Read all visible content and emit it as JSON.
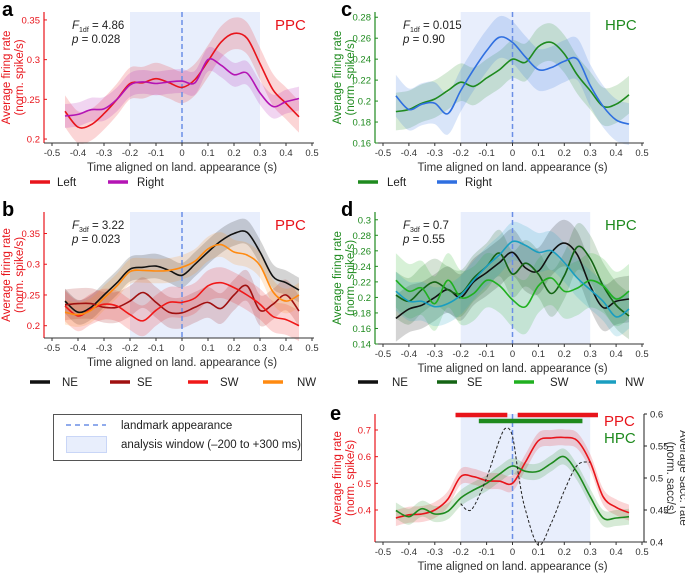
{
  "colors": {
    "window": "#e8eefc",
    "window_edge": "#c9d6f7",
    "landmark": "#6b8fe6",
    "ppc": "#e8141b",
    "hpc": "#1e8a1e"
  },
  "legend_box": {
    "landmark_label": "landmark appearance",
    "window_label": "analysis window (–200 to +300 ms)"
  },
  "chart_data": [
    {
      "panel": "a",
      "type": "line",
      "region": "PPC",
      "region_color": "#e8141b",
      "stat": {
        "f_sub": "1df",
        "f_text": " = 4.86",
        "p_text": " = 0.028"
      },
      "xlabel": "Time aligned on land. appearance (s)",
      "ylabel": [
        "Average firing rate",
        "(norm. spike/s)"
      ],
      "xlim": [
        -0.5,
        0.5
      ],
      "ylim": [
        0.195,
        0.36
      ],
      "xticks": [
        "-0.5",
        "-0.4",
        "-0.3",
        "-0.2",
        "-0.1",
        "0",
        "0.1",
        "0.2",
        "0.3",
        "0.4",
        "0.5"
      ],
      "yticks": [
        "0.2",
        "0.25",
        "0.3",
        "0.35"
      ],
      "window": [
        -0.2,
        0.3
      ],
      "landmark": 0,
      "x": [
        -0.45,
        -0.4,
        -0.35,
        -0.3,
        -0.25,
        -0.2,
        -0.15,
        -0.1,
        -0.05,
        0,
        0.05,
        0.1,
        0.15,
        0.2,
        0.25,
        0.3,
        0.35,
        0.4,
        0.45
      ],
      "series": [
        {
          "name": "Left",
          "color": "#e8141b",
          "band": 0.02,
          "values": [
            0.235,
            0.215,
            0.218,
            0.232,
            0.25,
            0.27,
            0.271,
            0.276,
            0.271,
            0.265,
            0.275,
            0.298,
            0.322,
            0.333,
            0.327,
            0.295,
            0.262,
            0.245,
            0.228
          ]
        },
        {
          "name": "Right",
          "color": "#b414b4",
          "band": 0.015,
          "values": [
            0.229,
            0.231,
            0.237,
            0.238,
            0.25,
            0.268,
            0.272,
            0.27,
            0.272,
            0.273,
            0.271,
            0.3,
            0.293,
            0.281,
            0.283,
            0.258,
            0.241,
            0.247,
            0.251
          ]
        }
      ]
    },
    {
      "panel": "c",
      "type": "line",
      "region": "HPC",
      "region_color": "#1e8a1e",
      "stat": {
        "f_sub": "1df",
        "f_text": " = 0.015",
        "p_text": " = 0.90"
      },
      "xlabel": "Time aligned on land. appearance (s)",
      "ylabel": [
        "Average firing rate",
        "(norm. spike/s)"
      ],
      "xlim": [
        -0.5,
        0.5
      ],
      "ylim": [
        0.16,
        0.285
      ],
      "xticks": [
        "-0.5",
        "-0.4",
        "-0.3",
        "-0.2",
        "-0.1",
        "0",
        "0.1",
        "0.2",
        "0.3",
        "0.4",
        "0.5"
      ],
      "yticks": [
        "0.16",
        "0.18",
        "0.2",
        "0.22",
        "0.24",
        "0.26",
        "0.28"
      ],
      "window": [
        -0.2,
        0.3
      ],
      "landmark": 0,
      "x": [
        -0.45,
        -0.4,
        -0.35,
        -0.3,
        -0.25,
        -0.2,
        -0.15,
        -0.1,
        -0.05,
        0,
        0.05,
        0.1,
        0.15,
        0.2,
        0.25,
        0.3,
        0.35,
        0.4,
        0.45
      ],
      "series": [
        {
          "name": "Left",
          "color": "#1e8a1e",
          "band": 0.018,
          "values": [
            0.19,
            0.192,
            0.198,
            0.202,
            0.21,
            0.218,
            0.214,
            0.222,
            0.23,
            0.24,
            0.237,
            0.252,
            0.256,
            0.245,
            0.225,
            0.21,
            0.195,
            0.197,
            0.206
          ]
        },
        {
          "name": "Right",
          "color": "#2f6fe0",
          "band": 0.02,
          "values": [
            0.205,
            0.192,
            0.197,
            0.198,
            0.188,
            0.21,
            0.23,
            0.248,
            0.261,
            0.256,
            0.242,
            0.23,
            0.232,
            0.238,
            0.24,
            0.215,
            0.195,
            0.182,
            0.178
          ]
        }
      ]
    },
    {
      "panel": "b",
      "type": "line",
      "region": "PPC",
      "region_color": "#e8141b",
      "stat": {
        "f_sub": "3df",
        "f_text": " = 3.22",
        "p_text": " = 0.023"
      },
      "xlabel": "Time aligned on land. appearance (s)",
      "ylabel": [
        "Average firing rate",
        "(norm. spike/s)"
      ],
      "xlim": [
        -0.5,
        0.5
      ],
      "ylim": [
        0.18,
        0.385
      ],
      "xticks": [
        "-0.5",
        "-0.4",
        "-0.3",
        "-0.2",
        "-0.1",
        "0",
        "0.1",
        "0.2",
        "0.3",
        "0.4",
        "0.5"
      ],
      "yticks": [
        "0.2",
        "0.25",
        "0.3",
        "0.35"
      ],
      "window": [
        -0.2,
        0.3
      ],
      "landmark": 0,
      "x": [
        -0.45,
        -0.4,
        -0.35,
        -0.3,
        -0.25,
        -0.2,
        -0.15,
        -0.1,
        -0.05,
        0,
        0.05,
        0.1,
        0.15,
        0.2,
        0.25,
        0.3,
        0.35,
        0.4,
        0.45
      ],
      "series": [
        {
          "name": "NE",
          "color": "#111111",
          "band": 0.02,
          "values": [
            0.24,
            0.222,
            0.23,
            0.25,
            0.27,
            0.292,
            0.295,
            0.297,
            0.29,
            0.282,
            0.3,
            0.32,
            0.338,
            0.35,
            0.352,
            0.32,
            0.28,
            0.27,
            0.258
          ]
        },
        {
          "name": "SE",
          "color": "#a01010",
          "band": 0.025,
          "values": [
            0.234,
            0.236,
            0.236,
            0.23,
            0.23,
            0.24,
            0.254,
            0.238,
            0.222,
            0.221,
            0.23,
            0.238,
            0.228,
            0.25,
            0.265,
            0.225,
            0.235,
            0.25,
            0.224
          ]
        },
        {
          "name": "SW",
          "color": "#f01818",
          "band": 0.025,
          "values": [
            0.232,
            0.216,
            0.227,
            0.235,
            0.232,
            0.218,
            0.208,
            0.225,
            0.238,
            0.238,
            0.245,
            0.265,
            0.27,
            0.262,
            0.25,
            0.235,
            0.215,
            0.21,
            0.2
          ]
        },
        {
          "name": "NW",
          "color": "#ff8a10",
          "band": 0.02,
          "values": [
            0.222,
            0.218,
            0.225,
            0.245,
            0.265,
            0.288,
            0.29,
            0.289,
            0.29,
            0.295,
            0.305,
            0.325,
            0.332,
            0.32,
            0.315,
            0.298,
            0.255,
            0.24,
            0.25
          ]
        }
      ]
    },
    {
      "panel": "d",
      "type": "line",
      "region": "HPC",
      "region_color": "#1e8a1e",
      "stat": {
        "f_sub": "3df",
        "f_text": " = 0.7",
        "p_text": " = 0.55"
      },
      "xlabel": "Time aligned on land. appearance (s)",
      "ylabel": [
        "Average firing rate",
        "(norm. spike/s)"
      ],
      "xlim": [
        -0.5,
        0.5
      ],
      "ylim": [
        0.14,
        0.31
      ],
      "xticks": [
        "-0.5",
        "-0.4",
        "-0.3",
        "-0.2",
        "-0.1",
        "0",
        "0.1",
        "0.2",
        "0.3",
        "0.4",
        "0.5"
      ],
      "yticks": [
        "0.14",
        "0.16",
        "0.18",
        "0.2",
        "0.22",
        "0.24",
        "0.26",
        "0.28",
        "0.3"
      ],
      "window": [
        -0.2,
        0.3
      ],
      "landmark": 0,
      "x": [
        -0.45,
        -0.4,
        -0.35,
        -0.3,
        -0.25,
        -0.2,
        -0.15,
        -0.1,
        -0.05,
        0,
        0.05,
        0.1,
        0.15,
        0.2,
        0.25,
        0.3,
        0.35,
        0.4,
        0.45
      ],
      "series": [
        {
          "name": "NE",
          "color": "#111111",
          "band": 0.03,
          "values": [
            0.173,
            0.185,
            0.19,
            0.2,
            0.21,
            0.2,
            0.22,
            0.232,
            0.245,
            0.258,
            0.238,
            0.234,
            0.258,
            0.27,
            0.255,
            0.215,
            0.187,
            0.195,
            0.198
          ]
        },
        {
          "name": "SE",
          "color": "#146414",
          "band": 0.03,
          "values": [
            0.203,
            0.195,
            0.21,
            0.22,
            0.21,
            0.205,
            0.225,
            0.24,
            0.257,
            0.23,
            0.244,
            0.23,
            0.205,
            0.228,
            0.265,
            0.25,
            0.215,
            0.19,
            0.176
          ]
        },
        {
          "name": "SW",
          "color": "#20b020",
          "band": 0.035,
          "values": [
            0.222,
            0.208,
            0.212,
            0.192,
            0.222,
            0.2,
            0.205,
            0.222,
            0.215,
            0.197,
            0.188,
            0.215,
            0.225,
            0.208,
            0.212,
            0.222,
            0.215,
            0.198,
            0.208
          ]
        },
        {
          "name": "NW",
          "color": "#1a9ec0",
          "band": 0.025,
          "values": [
            0.208,
            0.195,
            0.195,
            0.188,
            0.192,
            0.203,
            0.222,
            0.24,
            0.255,
            0.272,
            0.267,
            0.258,
            0.26,
            0.245,
            0.225,
            0.21,
            0.195,
            0.175,
            0.185
          ]
        }
      ]
    },
    {
      "panel": "e",
      "type": "line",
      "regions": [
        {
          "label": "PPC",
          "color": "#e8141b"
        },
        {
          "label": "HPC",
          "color": "#1e8a1e"
        }
      ],
      "xlabel": "Time aligned on land. appearance (s)",
      "ylabel": [
        "Average firing rate",
        "(norm. spike/s)"
      ],
      "y2label": [
        "Average sacc. rate",
        "(norm. sacc/s)"
      ],
      "xlim": [
        -0.5,
        0.5
      ],
      "ylim": [
        0.28,
        0.76
      ],
      "y2lim": [
        0.4,
        0.6
      ],
      "xticks": [
        "-0.5",
        "-0.4",
        "-0.3",
        "-0.2",
        "-0.1",
        "0",
        "0.1",
        "0.2",
        "0.3",
        "0.4",
        "0.5"
      ],
      "yticks": [
        "0.4",
        "0.5",
        "0.6",
        "0.7"
      ],
      "y2ticks": [
        "0.4",
        "0.45",
        "0.5",
        "0.55",
        "0.6"
      ],
      "window": [
        -0.2,
        0.3
      ],
      "landmark": 0,
      "x": [
        -0.45,
        -0.4,
        -0.35,
        -0.3,
        -0.25,
        -0.2,
        -0.15,
        -0.1,
        -0.05,
        0,
        0.05,
        0.1,
        0.15,
        0.2,
        0.25,
        0.3,
        0.35,
        0.4,
        0.45
      ],
      "series": [
        {
          "name": "PPC",
          "color": "#e8141b",
          "band": 0.03,
          "values": [
            0.37,
            0.382,
            0.385,
            0.4,
            0.44,
            0.525,
            0.525,
            0.51,
            0.508,
            0.5,
            0.58,
            0.66,
            0.67,
            0.672,
            0.66,
            0.58,
            0.45,
            0.41,
            0.39
          ]
        },
        {
          "name": "HPC",
          "color": "#1e8a1e",
          "band": 0.03,
          "values": [
            0.398,
            0.375,
            0.405,
            0.385,
            0.395,
            0.445,
            0.475,
            0.5,
            0.535,
            0.565,
            0.545,
            0.545,
            0.575,
            0.6,
            0.54,
            0.45,
            0.37,
            0.37,
            0.375
          ]
        }
      ],
      "saccade": {
        "axis": "right",
        "color": "#222222",
        "x": [
          -0.2,
          -0.175,
          -0.15,
          -0.1,
          -0.05,
          -0.025,
          0,
          0.025,
          0.05,
          0.1,
          0.15,
          0.2,
          0.25,
          0.3
        ],
        "values": [
          0.46,
          0.45,
          0.455,
          0.5,
          0.56,
          0.578,
          0.565,
          0.5,
          0.45,
          0.395,
          0.43,
          0.48,
          0.52,
          0.525
        ]
      },
      "significance": [
        {
          "region": "PPC",
          "color": "#e8141b",
          "intervals": [
            [
              -0.22,
              -0.02
            ],
            [
              0.02,
              0.33
            ]
          ]
        },
        {
          "region": "HPC",
          "color": "#1e8a1e",
          "intervals": [
            [
              -0.13,
              0.27
            ]
          ]
        }
      ]
    }
  ]
}
